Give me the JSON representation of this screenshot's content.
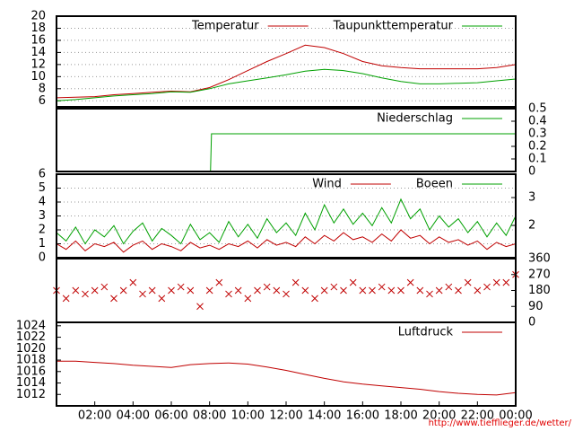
{
  "chart_data": [
    {
      "type": "line",
      "xlim": [
        0,
        24
      ],
      "ylim": [
        5,
        20
      ],
      "yticks": [
        6,
        8,
        10,
        12,
        14,
        16,
        18,
        20
      ],
      "grid": true,
      "series": [
        {
          "name": "Temperatur",
          "color": "#c00000",
          "x": [
            0,
            1,
            2,
            3,
            4,
            5,
            6,
            7,
            8,
            9,
            10,
            11,
            12,
            13,
            14,
            15,
            16,
            17,
            18,
            19,
            20,
            21,
            22,
            23,
            24
          ],
          "values": [
            6.5,
            6.6,
            6.7,
            7.0,
            7.2,
            7.4,
            7.6,
            7.5,
            8.2,
            9.5,
            11.0,
            12.5,
            13.8,
            15.2,
            14.8,
            13.8,
            12.5,
            11.8,
            11.5,
            11.3,
            11.3,
            11.3,
            11.3,
            11.5,
            12.0
          ]
        },
        {
          "name": "Taupunkttemperatur",
          "color": "#00a000",
          "x": [
            0,
            1,
            2,
            3,
            4,
            5,
            6,
            7,
            8,
            9,
            10,
            11,
            12,
            13,
            14,
            15,
            16,
            17,
            18,
            19,
            20,
            21,
            22,
            23,
            24
          ],
          "values": [
            6.0,
            6.2,
            6.5,
            6.8,
            7.0,
            7.2,
            7.5,
            7.4,
            8.0,
            8.8,
            9.3,
            9.8,
            10.3,
            10.9,
            11.2,
            11.0,
            10.5,
            9.8,
            9.2,
            8.8,
            8.8,
            8.9,
            9.0,
            9.3,
            9.6
          ]
        }
      ]
    },
    {
      "type": "line",
      "xlim": [
        0,
        24
      ],
      "ylim": [
        0,
        0.5
      ],
      "yticks": [
        0,
        0.1,
        0.2,
        0.3,
        0.4,
        0.5
      ],
      "y_axis_position": "right",
      "series": [
        {
          "name": "Niederschlag",
          "color": "#00a000",
          "x": [
            0,
            8.05,
            8.1,
            24
          ],
          "values": [
            0,
            0,
            0.3,
            0.3
          ]
        }
      ]
    },
    {
      "type": "line",
      "xlim": [
        0,
        24
      ],
      "ylim": [
        0,
        6
      ],
      "yticks": [
        0,
        1,
        2,
        3,
        4,
        5,
        6
      ],
      "grid": true,
      "y2lim": [
        0.84,
        3.84
      ],
      "y2ticks": [
        2,
        3
      ],
      "series": [
        {
          "name": "Wind",
          "color": "#c00000",
          "x": [
            0,
            0.5,
            1,
            1.5,
            2,
            2.5,
            3,
            3.5,
            4,
            4.5,
            5,
            5.5,
            6,
            6.5,
            7,
            7.5,
            8,
            8.5,
            9,
            9.5,
            10,
            10.5,
            11,
            11.5,
            12,
            12.5,
            13,
            13.5,
            14,
            14.5,
            15,
            15.5,
            16,
            16.5,
            17,
            17.5,
            18,
            18.5,
            19,
            19.5,
            20,
            20.5,
            21,
            21.5,
            22,
            22.5,
            23,
            23.5,
            24
          ],
          "values": [
            1.0,
            0.6,
            1.2,
            0.5,
            1.0,
            0.8,
            1.1,
            0.4,
            0.9,
            1.2,
            0.6,
            1.0,
            0.8,
            0.5,
            1.1,
            0.7,
            0.9,
            0.6,
            1.0,
            0.8,
            1.2,
            0.7,
            1.3,
            0.9,
            1.1,
            0.8,
            1.5,
            1.0,
            1.6,
            1.2,
            1.8,
            1.3,
            1.5,
            1.1,
            1.7,
            1.2,
            2.0,
            1.4,
            1.6,
            1.0,
            1.5,
            1.1,
            1.3,
            0.9,
            1.2,
            0.6,
            1.1,
            0.8,
            1.0
          ]
        },
        {
          "name": "Boeen",
          "color": "#00a000",
          "x": [
            0,
            0.5,
            1,
            1.5,
            2,
            2.5,
            3,
            3.5,
            4,
            4.5,
            5,
            5.5,
            6,
            6.5,
            7,
            7.5,
            8,
            8.5,
            9,
            9.5,
            10,
            10.5,
            11,
            11.5,
            12,
            12.5,
            13,
            13.5,
            14,
            14.5,
            15,
            15.5,
            16,
            16.5,
            17,
            17.5,
            18,
            18.5,
            19,
            19.5,
            20,
            20.5,
            21,
            21.5,
            22,
            22.5,
            23,
            23.5,
            24
          ],
          "values": [
            1.8,
            1.2,
            2.2,
            1.0,
            2.0,
            1.5,
            2.3,
            1.0,
            1.9,
            2.5,
            1.2,
            2.1,
            1.6,
            1.0,
            2.4,
            1.3,
            1.8,
            1.1,
            2.6,
            1.5,
            2.4,
            1.4,
            2.8,
            1.8,
            2.5,
            1.6,
            3.2,
            2.0,
            3.8,
            2.5,
            3.5,
            2.4,
            3.2,
            2.3,
            3.6,
            2.5,
            4.2,
            2.8,
            3.5,
            2.0,
            3.0,
            2.2,
            2.8,
            1.8,
            2.6,
            1.5,
            2.5,
            1.6,
            3.0
          ]
        }
      ]
    },
    {
      "type": "scatter",
      "xlim": [
        0,
        24
      ],
      "ylim": [
        0,
        360
      ],
      "yticks": [
        0,
        90,
        180,
        270,
        360
      ],
      "y_axis_position": "right",
      "series": [
        {
          "color": "#c00000",
          "x": [
            0,
            0.5,
            1,
            1.5,
            2,
            2.5,
            3,
            3.5,
            4,
            4.5,
            5,
            5.5,
            6,
            6.5,
            7,
            7.5,
            8,
            8.5,
            9,
            9.5,
            10,
            10.5,
            11,
            11.5,
            12,
            12.5,
            13,
            13.5,
            14,
            14.5,
            15,
            15.5,
            16,
            16.5,
            17,
            17.5,
            18,
            18.5,
            19,
            19.5,
            20,
            20.5,
            21,
            21.5,
            22,
            22.5,
            23,
            23.5,
            24
          ],
          "values": [
            180,
            135,
            180,
            160,
            180,
            200,
            135,
            180,
            225,
            160,
            180,
            135,
            180,
            200,
            180,
            90,
            180,
            225,
            160,
            180,
            135,
            180,
            200,
            180,
            160,
            225,
            180,
            135,
            180,
            200,
            180,
            225,
            180,
            180,
            200,
            180,
            180,
            225,
            180,
            160,
            180,
            200,
            180,
            225,
            180,
            200,
            225,
            225,
            270
          ]
        }
      ]
    },
    {
      "type": "line",
      "xlim": [
        0,
        24
      ],
      "ylim": [
        1010,
        1024.6
      ],
      "yticks": [
        1012,
        1014,
        1016,
        1018,
        1020,
        1022,
        1024
      ],
      "xticks": [
        {
          "value": 2,
          "label": "02:00"
        },
        {
          "value": 4,
          "label": "04:00"
        },
        {
          "value": 6,
          "label": "06:00"
        },
        {
          "value": 8,
          "label": "08:00"
        },
        {
          "value": 10,
          "label": "10:00"
        },
        {
          "value": 12,
          "label": "12:00"
        },
        {
          "value": 14,
          "label": "14:00"
        },
        {
          "value": 16,
          "label": "16:00"
        },
        {
          "value": 18,
          "label": "18:00"
        },
        {
          "value": 20,
          "label": "20:00"
        },
        {
          "value": 22,
          "label": "22:00"
        },
        {
          "value": 24,
          "label": "00:00"
        }
      ],
      "series": [
        {
          "name": "Luftdruck",
          "color": "#c00000",
          "x": [
            0,
            1,
            2,
            3,
            4,
            5,
            6,
            7,
            8,
            9,
            10,
            11,
            12,
            13,
            14,
            15,
            16,
            17,
            18,
            19,
            20,
            21,
            22,
            23,
            24
          ],
          "values": [
            1017.8,
            1017.8,
            1017.6,
            1017.4,
            1017.1,
            1016.9,
            1016.7,
            1017.2,
            1017.4,
            1017.5,
            1017.3,
            1016.8,
            1016.2,
            1015.5,
            1014.8,
            1014.2,
            1013.8,
            1013.5,
            1013.2,
            1012.9,
            1012.5,
            1012.2,
            1012.0,
            1011.9,
            1012.3
          ]
        }
      ]
    }
  ],
  "footer": "http://www.tiefflieger.de/wetter/"
}
